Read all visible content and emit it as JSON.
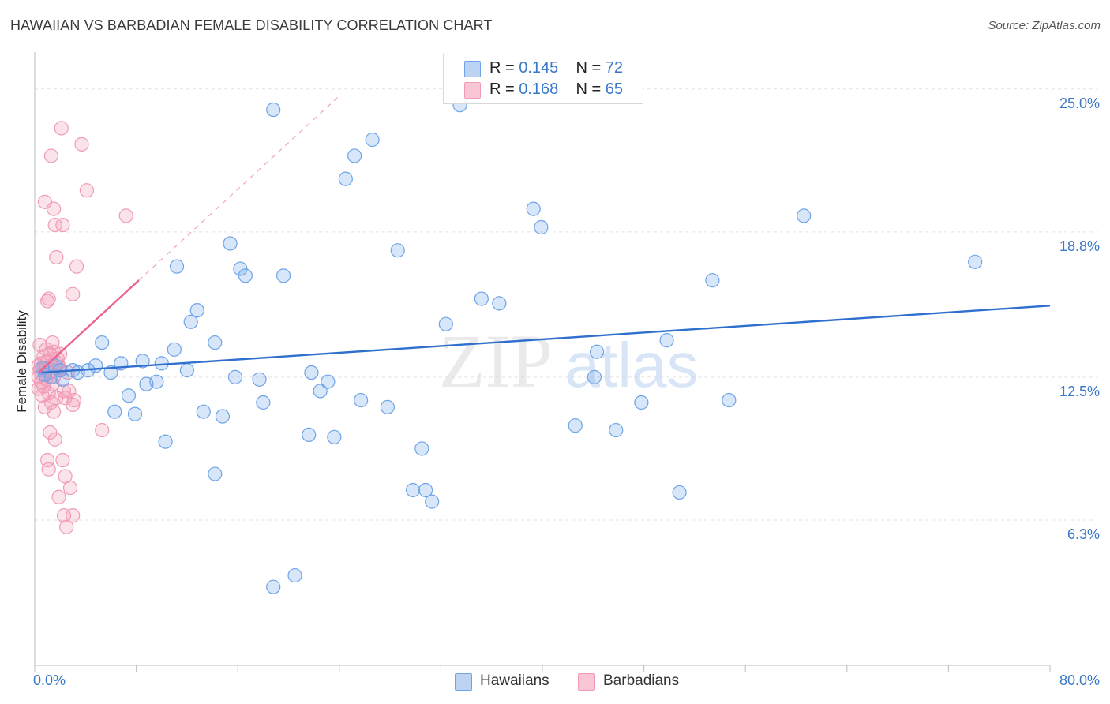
{
  "chart_data": {
    "type": "scatter",
    "title": "HAWAIIAN VS BARBADIAN FEMALE DISABILITY CORRELATION CHART",
    "source": "Source: ZipAtlas.com",
    "ylabel": "Female Disability",
    "xlabel": "",
    "xlim": [
      0,
      80
    ],
    "ylim": [
      0,
      26.6
    ],
    "x_tick_labels": [
      "0.0%",
      "80.0%"
    ],
    "y_ticks": [
      {
        "value": 6.3,
        "label": "6.3%"
      },
      {
        "value": 12.5,
        "label": "12.5%"
      },
      {
        "value": 18.8,
        "label": "18.8%"
      },
      {
        "value": 25.0,
        "label": "25.0%"
      }
    ],
    "watermark": {
      "zip": "ZIP",
      "atlas": "atlas"
    },
    "colors": {
      "hawaiian": "#6fa4e8",
      "hawaiian_line": "#2f6fce",
      "barbadian": "#f29ab5",
      "barbadian_line": "#e8638e"
    },
    "legend_top": [
      {
        "r_label": "R = ",
        "r_value": "0.145",
        "n_label": "N = ",
        "n_value": "72"
      },
      {
        "r_label": "R = ",
        "r_value": "0.168",
        "n_label": "N = ",
        "n_value": "65"
      }
    ],
    "legend_bottom": [
      "Hawaiians",
      "Barbadians"
    ],
    "series": [
      {
        "name": "Hawaiians",
        "trend": {
          "x": [
            0.5,
            80
          ],
          "y": [
            12.7,
            15.6
          ]
        },
        "points": [
          [
            18.8,
            24.1
          ],
          [
            33.5,
            24.3
          ],
          [
            26.6,
            22.8
          ],
          [
            25.2,
            22.1
          ],
          [
            24.5,
            21.1
          ],
          [
            39.3,
            19.8
          ],
          [
            39.9,
            19.0
          ],
          [
            60.6,
            19.5
          ],
          [
            28.6,
            18.0
          ],
          [
            15.4,
            18.3
          ],
          [
            74.1,
            17.5
          ],
          [
            11.2,
            17.3
          ],
          [
            16.2,
            17.2
          ],
          [
            16.6,
            16.9
          ],
          [
            19.6,
            16.9
          ],
          [
            53.4,
            16.7
          ],
          [
            35.2,
            15.9
          ],
          [
            36.6,
            15.7
          ],
          [
            12.8,
            15.4
          ],
          [
            12.3,
            14.9
          ],
          [
            32.4,
            14.8
          ],
          [
            49.8,
            14.1
          ],
          [
            5.3,
            14.0
          ],
          [
            14.2,
            14.0
          ],
          [
            11.0,
            13.7
          ],
          [
            44.3,
            13.6
          ],
          [
            8.5,
            13.2
          ],
          [
            10.0,
            13.1
          ],
          [
            6.8,
            13.1
          ],
          [
            4.8,
            13.0
          ],
          [
            1.6,
            13.0
          ],
          [
            4.2,
            12.8
          ],
          [
            3.0,
            12.8
          ],
          [
            3.4,
            12.7
          ],
          [
            12.0,
            12.8
          ],
          [
            6.0,
            12.7
          ],
          [
            21.8,
            12.7
          ],
          [
            15.8,
            12.5
          ],
          [
            17.7,
            12.4
          ],
          [
            2.2,
            12.4
          ],
          [
            9.6,
            12.3
          ],
          [
            8.8,
            12.2
          ],
          [
            23.1,
            12.3
          ],
          [
            44.1,
            12.5
          ],
          [
            22.5,
            11.9
          ],
          [
            7.4,
            11.7
          ],
          [
            18.0,
            11.4
          ],
          [
            25.7,
            11.5
          ],
          [
            54.7,
            11.5
          ],
          [
            47.8,
            11.4
          ],
          [
            27.8,
            11.2
          ],
          [
            6.3,
            11.0
          ],
          [
            7.9,
            10.9
          ],
          [
            13.3,
            11.0
          ],
          [
            14.8,
            10.8
          ],
          [
            42.6,
            10.4
          ],
          [
            45.8,
            10.2
          ],
          [
            21.6,
            10.0
          ],
          [
            23.6,
            9.9
          ],
          [
            10.3,
            9.7
          ],
          [
            30.5,
            9.4
          ],
          [
            14.2,
            8.3
          ],
          [
            29.8,
            7.6
          ],
          [
            30.8,
            7.6
          ],
          [
            31.3,
            7.1
          ],
          [
            50.8,
            7.5
          ],
          [
            20.5,
            3.9
          ],
          [
            18.8,
            3.4
          ],
          [
            0.8,
            12.6
          ],
          [
            1.3,
            12.5
          ],
          [
            2.0,
            12.8
          ],
          [
            0.6,
            12.9
          ]
        ]
      },
      {
        "name": "Barbadians",
        "trend": {
          "x": [
            0.3,
            8.2
          ],
          "y": [
            12.7,
            16.7
          ]
        },
        "points": [
          [
            2.1,
            23.3
          ],
          [
            3.7,
            22.6
          ],
          [
            1.3,
            22.1
          ],
          [
            4.1,
            20.6
          ],
          [
            0.8,
            20.1
          ],
          [
            1.5,
            19.8
          ],
          [
            7.2,
            19.5
          ],
          [
            1.6,
            19.1
          ],
          [
            2.2,
            19.1
          ],
          [
            1.7,
            17.7
          ],
          [
            3.3,
            17.3
          ],
          [
            3.0,
            16.1
          ],
          [
            1.1,
            15.9
          ],
          [
            1.0,
            15.8
          ],
          [
            1.4,
            14.0
          ],
          [
            0.4,
            13.9
          ],
          [
            0.9,
            13.7
          ],
          [
            1.5,
            13.6
          ],
          [
            2.0,
            13.5
          ],
          [
            0.7,
            13.4
          ],
          [
            1.8,
            13.3
          ],
          [
            1.0,
            13.2
          ],
          [
            0.5,
            13.1
          ],
          [
            1.3,
            13.0
          ],
          [
            0.3,
            13.0
          ],
          [
            0.8,
            12.9
          ],
          [
            1.9,
            12.8
          ],
          [
            0.4,
            12.8
          ],
          [
            1.2,
            12.7
          ],
          [
            0.6,
            12.6
          ],
          [
            0.3,
            12.5
          ],
          [
            1.5,
            12.5
          ],
          [
            0.9,
            12.4
          ],
          [
            0.5,
            12.3
          ],
          [
            1.4,
            12.2
          ],
          [
            0.7,
            12.1
          ],
          [
            0.3,
            12.0
          ],
          [
            2.3,
            11.9
          ],
          [
            1.1,
            11.8
          ],
          [
            2.7,
            11.9
          ],
          [
            0.6,
            11.7
          ],
          [
            1.7,
            11.6
          ],
          [
            3.1,
            11.5
          ],
          [
            2.4,
            11.6
          ],
          [
            1.3,
            11.4
          ],
          [
            3.0,
            11.3
          ],
          [
            0.8,
            11.2
          ],
          [
            1.5,
            11.0
          ],
          [
            5.3,
            10.2
          ],
          [
            1.2,
            10.1
          ],
          [
            1.6,
            9.8
          ],
          [
            2.2,
            8.9
          ],
          [
            1.0,
            8.9
          ],
          [
            1.1,
            8.5
          ],
          [
            2.4,
            8.2
          ],
          [
            2.8,
            7.7
          ],
          [
            1.9,
            7.3
          ],
          [
            3.0,
            6.5
          ],
          [
            2.3,
            6.5
          ],
          [
            2.5,
            6.0
          ],
          [
            1.8,
            13.1
          ],
          [
            2.0,
            12.9
          ],
          [
            1.2,
            13.5
          ],
          [
            0.9,
            12.9
          ],
          [
            2.6,
            12.7
          ]
        ]
      }
    ]
  }
}
